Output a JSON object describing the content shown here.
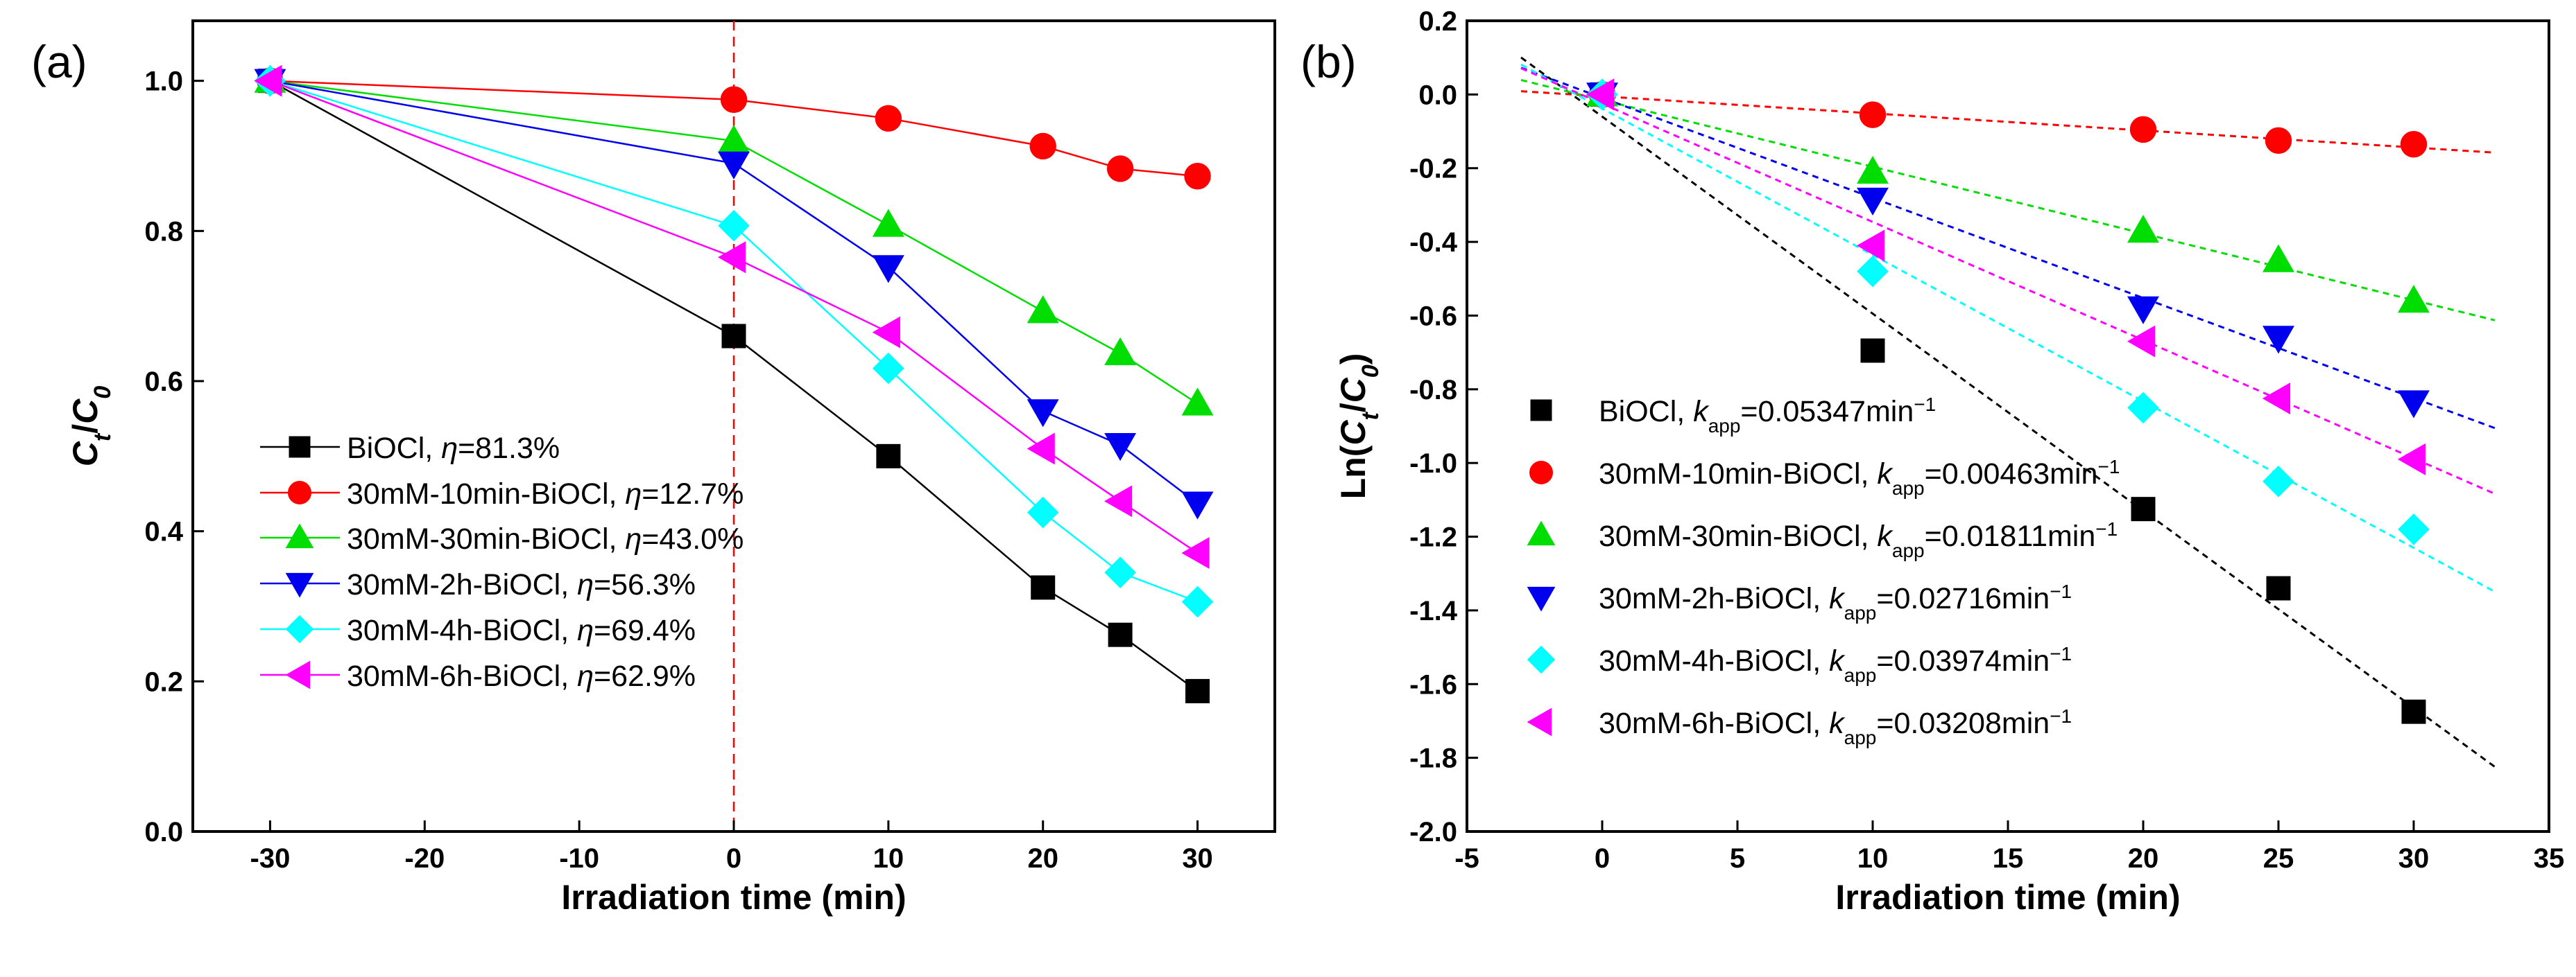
{
  "colors": {
    "BiOCl": "#000000",
    "10min": "#ff0000",
    "30min": "#00dd00",
    "2h": "#0000ee",
    "4h": "#00ffff",
    "6h": "#ff00ff",
    "marker_line": "#ff0000"
  },
  "chart_data": [
    {
      "type": "line",
      "panel_label": "(a)",
      "xlabel": "Irradiation time (min)",
      "ylabel": {
        "main": "C",
        "sub1": "t",
        "slash": "/",
        "main2": "C",
        "sub2": "0"
      },
      "xlim": [
        -35,
        35
      ],
      "ylim": [
        0.0,
        1.08
      ],
      "xticks": [
        -30,
        -20,
        -10,
        0,
        10,
        20,
        30
      ],
      "yticks": [
        0.0,
        0.2,
        0.4,
        0.6,
        0.8,
        1.0
      ],
      "xtick_labels": [
        "-30",
        "-20",
        "-10",
        "0",
        "10",
        "20",
        "30"
      ],
      "ytick_labels": [
        "0.0",
        "0.2",
        "0.4",
        "0.6",
        "0.8",
        "1.0"
      ],
      "vline_x": 0,
      "x": [
        -30,
        0,
        10,
        20,
        25,
        30
      ],
      "legend_position": "lower-left",
      "series": [
        {
          "key": "BiOCl",
          "name": "BiOCl, ",
          "eta_symbol": "η",
          "eta_text": "=81.3%",
          "marker": "square",
          "values": [
            1.0,
            0.66,
            0.5,
            0.325,
            0.262,
            0.187
          ]
        },
        {
          "key": "10min",
          "name": "30mM-10min-BiOCl, ",
          "eta_symbol": "η",
          "eta_text": "=12.7%",
          "marker": "circle",
          "values": [
            1.0,
            0.975,
            0.95,
            0.913,
            0.883,
            0.873
          ]
        },
        {
          "key": "30min",
          "name": "30mM-30min-BiOCl, ",
          "eta_symbol": "η",
          "eta_text": "=43.0%",
          "marker": "triangle-up",
          "values": [
            1.0,
            0.92,
            0.808,
            0.693,
            0.637,
            0.57
          ]
        },
        {
          "key": "2h",
          "name": "30mM-2h-BiOCl, ",
          "eta_symbol": "η",
          "eta_text": "=56.3%",
          "marker": "triangle-down",
          "values": [
            1.0,
            0.89,
            0.752,
            0.56,
            0.515,
            0.437
          ]
        },
        {
          "key": "4h",
          "name": "30mM-4h-BiOCl, ",
          "eta_symbol": "η",
          "eta_text": "=69.4%",
          "marker": "diamond",
          "values": [
            1.0,
            0.807,
            0.617,
            0.425,
            0.345,
            0.306
          ]
        },
        {
          "key": "6h",
          "name": "30mM-6h-BiOCl, ",
          "eta_symbol": "η",
          "eta_text": "=62.9%",
          "marker": "triangle-left",
          "values": [
            1.0,
            0.765,
            0.665,
            0.51,
            0.44,
            0.371
          ]
        }
      ]
    },
    {
      "type": "scatter",
      "panel_label": "(b)",
      "xlabel": "Irradiation time (min)",
      "ylabel": {
        "prefix": "Ln(",
        "main": "C",
        "sub1": "t",
        "slash": "/",
        "main2": "C",
        "sub2": "0",
        "suffix": ")"
      },
      "xlim": [
        -5,
        35
      ],
      "ylim": [
        -2.0,
        0.2
      ],
      "xticks": [
        -5,
        0,
        5,
        10,
        15,
        20,
        25,
        30,
        35
      ],
      "yticks": [
        -2.0,
        -1.8,
        -1.6,
        -1.4,
        -1.2,
        -1.0,
        -0.8,
        -0.6,
        -0.4,
        -0.2,
        0.0,
        0.2
      ],
      "xtick_labels": [
        "-5",
        "0",
        "5",
        "10",
        "15",
        "20",
        "25",
        "30",
        "35"
      ],
      "ytick_labels": [
        "-2.0",
        "-1.8",
        "-1.6",
        "-1.4",
        "-1.2",
        "-1.0",
        "-0.8",
        "-0.6",
        "-0.4",
        "-0.2",
        "0.0",
        "0.2"
      ],
      "x": [
        0,
        10,
        20,
        25,
        30
      ],
      "fit_x_range": [
        -3,
        33
      ],
      "legend_position": "left-center",
      "series": [
        {
          "key": "BiOCl",
          "name": "BiOCl, ",
          "k_symbol": "k",
          "k_sub": "app",
          "k_text": "=0.05347min",
          "k_sup": "−1",
          "marker": "square",
          "slope": -0.05347,
          "intercept": -0.06,
          "values": [
            0.0,
            -0.695,
            -1.125,
            -1.34,
            -1.675
          ]
        },
        {
          "key": "10min",
          "name": "30mM-10min-BiOCl, ",
          "k_symbol": "k",
          "k_sub": "app",
          "k_text": "=0.00463min",
          "k_sup": "−1",
          "marker": "circle",
          "slope": -0.00463,
          "intercept": -0.005,
          "values": [
            0.0,
            -0.055,
            -0.095,
            -0.125,
            -0.135
          ]
        },
        {
          "key": "30min",
          "name": "30mM-30min-BiOCl, ",
          "k_symbol": "k",
          "k_sub": "app",
          "k_text": "=0.01811min",
          "k_sup": "−1",
          "marker": "triangle-up",
          "slope": -0.01811,
          "intercept": -0.015,
          "values": [
            0.0,
            -0.21,
            -0.37,
            -0.45,
            -0.56
          ]
        },
        {
          "key": "2h",
          "name": "30mM-2h-BiOCl, ",
          "k_symbol": "k",
          "k_sub": "app",
          "k_text": "=0.02716min",
          "k_sup": "−1",
          "marker": "triangle-down",
          "slope": -0.02716,
          "intercept": -0.009,
          "values": [
            0.0,
            -0.285,
            -0.58,
            -0.66,
            -0.835
          ]
        },
        {
          "key": "4h",
          "name": "30mM-4h-BiOCl, ",
          "k_symbol": "k",
          "k_sub": "app",
          "k_text": "=0.03974min",
          "k_sup": "−1",
          "marker": "diamond",
          "slope": -0.03974,
          "intercept": -0.038,
          "values": [
            0.0,
            -0.48,
            -0.85,
            -1.05,
            -1.18
          ]
        },
        {
          "key": "6h",
          "name": "30mM-6h-BiOCl, ",
          "k_symbol": "k",
          "k_sub": "app",
          "k_text": "=0.03208min",
          "k_sup": "−1",
          "marker": "triangle-left",
          "slope": -0.03208,
          "intercept": -0.025,
          "values": [
            0.0,
            -0.41,
            -0.67,
            -0.825,
            -0.99
          ]
        }
      ]
    }
  ]
}
